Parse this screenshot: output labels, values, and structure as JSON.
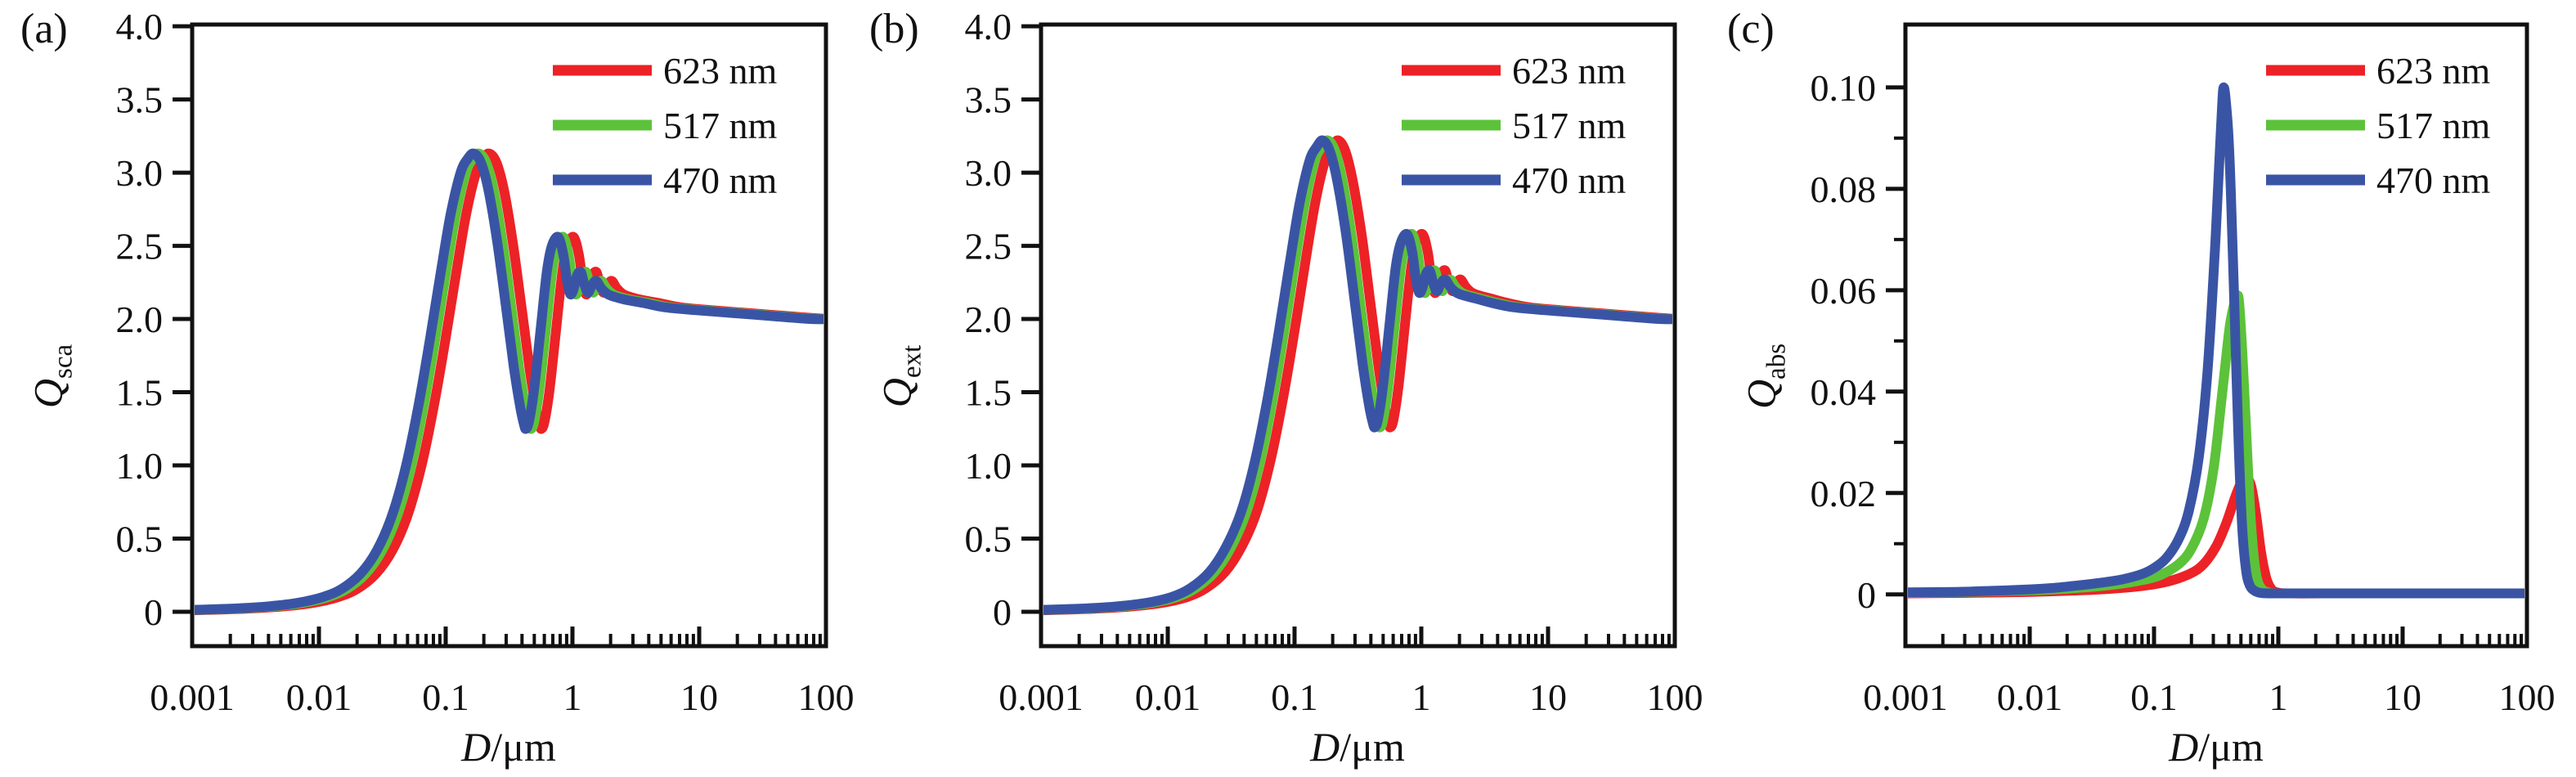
{
  "chart_data": [
    {
      "type": "line",
      "panel_label": "(a)",
      "ylabel_main": "Q",
      "ylabel_sub": "sca",
      "xlabel_main": "D",
      "xlabel_unit": "/μm",
      "xscale": "log",
      "grid": false,
      "legend_position": "top-right",
      "xlim": [
        0.001,
        100
      ],
      "ylim": [
        -0.235,
        4.012
      ],
      "xticks": [
        {
          "log": -3,
          "label": "0.001"
        },
        {
          "log": -2,
          "label": "0.01"
        },
        {
          "log": -1,
          "label": "0.1"
        },
        {
          "log": 0,
          "label": "1"
        },
        {
          "log": 1,
          "label": "10"
        },
        {
          "log": 2,
          "label": "100"
        }
      ],
      "yticks": [
        {
          "v": 0,
          "label": "0"
        },
        {
          "v": 0.5,
          "label": "0.5"
        },
        {
          "v": 1.0,
          "label": "1.0"
        },
        {
          "v": 1.5,
          "label": "1.5"
        },
        {
          "v": 2.0,
          "label": "2.0"
        },
        {
          "v": 2.5,
          "label": "2.5"
        },
        {
          "v": 3.0,
          "label": "3.0"
        },
        {
          "v": 3.5,
          "label": "3.5"
        },
        {
          "v": 4.0,
          "label": "4.0"
        }
      ],
      "yminor": [],
      "legend": {
        "entries": [
          {
            "label": "623 nm",
            "color": "#EC2227"
          },
          {
            "label": "517 nm",
            "color": "#5CC23A"
          },
          {
            "label": "470 nm",
            "color": "#3A54A5"
          }
        ]
      },
      "series": [
        {
          "name": "623 nm",
          "color": "#EC2227",
          "points": [
            [
              -3.0,
              0.01
            ],
            [
              -2.6,
              0.02
            ],
            [
              -2.3,
              0.035
            ],
            [
              -2.05,
              0.06
            ],
            [
              -1.85,
              0.1
            ],
            [
              -1.7,
              0.155
            ],
            [
              -1.55,
              0.26
            ],
            [
              -1.42,
              0.42
            ],
            [
              -1.3,
              0.66
            ],
            [
              -1.19,
              1.0
            ],
            [
              -1.09,
              1.42
            ],
            [
              -1.0,
              1.87
            ],
            [
              -0.92,
              2.3
            ],
            [
              -0.84,
              2.71
            ],
            [
              -0.76,
              3.0
            ],
            [
              -0.7,
              3.1
            ],
            [
              -0.655,
              3.13
            ],
            [
              -0.6,
              3.07
            ],
            [
              -0.54,
              2.88
            ],
            [
              -0.47,
              2.52
            ],
            [
              -0.4,
              2.07
            ],
            [
              -0.34,
              1.67
            ],
            [
              -0.29,
              1.4
            ],
            [
              -0.26,
              1.28
            ],
            [
              -0.245,
              1.25
            ],
            [
              -0.22,
              1.3
            ],
            [
              -0.18,
              1.52
            ],
            [
              -0.13,
              1.92
            ],
            [
              -0.08,
              2.32
            ],
            [
              -0.04,
              2.5
            ],
            [
              0.01,
              2.56
            ],
            [
              0.05,
              2.44
            ],
            [
              0.08,
              2.26
            ],
            [
              0.105,
              2.17
            ],
            [
              0.13,
              2.2
            ],
            [
              0.16,
              2.3
            ],
            [
              0.19,
              2.32
            ],
            [
              0.215,
              2.24
            ],
            [
              0.245,
              2.18
            ],
            [
              0.275,
              2.23
            ],
            [
              0.31,
              2.26
            ],
            [
              0.35,
              2.21
            ],
            [
              0.4,
              2.17
            ],
            [
              0.46,
              2.15
            ],
            [
              0.55,
              2.13
            ],
            [
              0.68,
              2.11
            ],
            [
              0.85,
              2.08
            ],
            [
              1.1,
              2.06
            ],
            [
              1.4,
              2.04
            ],
            [
              1.7,
              2.02
            ],
            [
              2.0,
              2.0
            ]
          ]
        },
        {
          "name": "517 nm",
          "color": "#5CC23A",
          "shift": -0.081
        },
        {
          "name": "470 nm",
          "color": "#3A54A5",
          "shift": -0.1224
        }
      ]
    },
    {
      "type": "line",
      "panel_label": "(b)",
      "ylabel_main": "Q",
      "ylabel_sub": "ext",
      "xlabel_main": "D",
      "xlabel_unit": "/μm",
      "xscale": "log",
      "grid": false,
      "legend_position": "top-right",
      "xlim": [
        0.001,
        100
      ],
      "ylim": [
        -0.235,
        4.012
      ],
      "xticks": [
        {
          "log": -3,
          "label": "0.001"
        },
        {
          "log": -2,
          "label": "0.01"
        },
        {
          "log": -1,
          "label": "0.1"
        },
        {
          "log": 0,
          "label": "1"
        },
        {
          "log": 1,
          "label": "10"
        },
        {
          "log": 2,
          "label": "100"
        }
      ],
      "yticks": [
        {
          "v": 0,
          "label": "0"
        },
        {
          "v": 0.5,
          "label": "0.5"
        },
        {
          "v": 1.0,
          "label": "1.0"
        },
        {
          "v": 1.5,
          "label": "1.5"
        },
        {
          "v": 2.0,
          "label": "2.0"
        },
        {
          "v": 2.5,
          "label": "2.5"
        },
        {
          "v": 3.0,
          "label": "3.0"
        },
        {
          "v": 3.5,
          "label": "3.5"
        },
        {
          "v": 4.0,
          "label": "4.0"
        }
      ],
      "yminor": [],
      "legend": {
        "entries": [
          {
            "label": "623 nm",
            "color": "#EC2227"
          },
          {
            "label": "517 nm",
            "color": "#5CC23A"
          },
          {
            "label": "470 nm",
            "color": "#3A54A5"
          }
        ]
      },
      "series": [
        {
          "name": "623 nm",
          "color": "#EC2227",
          "points": [
            [
              -3.0,
              0.01
            ],
            [
              -2.6,
              0.02
            ],
            [
              -2.3,
              0.035
            ],
            [
              -2.05,
              0.06
            ],
            [
              -1.85,
              0.1
            ],
            [
              -1.7,
              0.16
            ],
            [
              -1.55,
              0.27
            ],
            [
              -1.42,
              0.44
            ],
            [
              -1.3,
              0.68
            ],
            [
              -1.19,
              1.03
            ],
            [
              -1.09,
              1.46
            ],
            [
              -1.0,
              1.92
            ],
            [
              -0.92,
              2.36
            ],
            [
              -0.84,
              2.78
            ],
            [
              -0.76,
              3.08
            ],
            [
              -0.7,
              3.18
            ],
            [
              -0.655,
              3.22
            ],
            [
              -0.6,
              3.15
            ],
            [
              -0.54,
              2.94
            ],
            [
              -0.47,
              2.57
            ],
            [
              -0.4,
              2.1
            ],
            [
              -0.34,
              1.69
            ],
            [
              -0.29,
              1.41
            ],
            [
              -0.26,
              1.29
            ],
            [
              -0.245,
              1.26
            ],
            [
              -0.22,
              1.31
            ],
            [
              -0.18,
              1.54
            ],
            [
              -0.13,
              1.95
            ],
            [
              -0.08,
              2.35
            ],
            [
              -0.04,
              2.52
            ],
            [
              0.01,
              2.58
            ],
            [
              0.05,
              2.46
            ],
            [
              0.08,
              2.27
            ],
            [
              0.105,
              2.18
            ],
            [
              0.13,
              2.21
            ],
            [
              0.16,
              2.31
            ],
            [
              0.19,
              2.33
            ],
            [
              0.215,
              2.25
            ],
            [
              0.245,
              2.19
            ],
            [
              0.275,
              2.24
            ],
            [
              0.31,
              2.27
            ],
            [
              0.35,
              2.22
            ],
            [
              0.4,
              2.18
            ],
            [
              0.46,
              2.16
            ],
            [
              0.55,
              2.14
            ],
            [
              0.68,
              2.11
            ],
            [
              0.85,
              2.08
            ],
            [
              1.1,
              2.06
            ],
            [
              1.4,
              2.04
            ],
            [
              1.7,
              2.02
            ],
            [
              2.0,
              2.0
            ]
          ]
        },
        {
          "name": "517 nm",
          "color": "#5CC23A",
          "shift": -0.081
        },
        {
          "name": "470 nm",
          "color": "#3A54A5",
          "shift": -0.1224
        }
      ]
    },
    {
      "type": "line",
      "panel_label": "(c)",
      "ylabel_main": "Q",
      "ylabel_sub": "abs",
      "xlabel_main": "D",
      "xlabel_unit": "/μm",
      "xscale": "log",
      "grid": false,
      "legend_position": "top-right",
      "xlim": [
        0.001,
        100
      ],
      "ylim": [
        -0.0102,
        0.1124
      ],
      "xticks": [
        {
          "log": -3,
          "label": "0.001"
        },
        {
          "log": -2,
          "label": "0.01"
        },
        {
          "log": -1,
          "label": "0.1"
        },
        {
          "log": 0,
          "label": "1"
        },
        {
          "log": 1,
          "label": "10"
        },
        {
          "log": 2,
          "label": "100"
        }
      ],
      "yticks": [
        {
          "v": 0,
          "label": "0"
        },
        {
          "v": 0.02,
          "label": "0.02"
        },
        {
          "v": 0.04,
          "label": "0.04"
        },
        {
          "v": 0.06,
          "label": "0.06"
        },
        {
          "v": 0.08,
          "label": "0.08"
        },
        {
          "v": 0.1,
          "label": "0.10"
        }
      ],
      "yminor": [
        0.01,
        0.03,
        0.05,
        0.07,
        0.09
      ],
      "legend": {
        "entries": [
          {
            "label": "623 nm",
            "color": "#EC2227"
          },
          {
            "label": "517 nm",
            "color": "#5CC23A"
          },
          {
            "label": "470 nm",
            "color": "#3A54A5"
          }
        ]
      },
      "series": [
        {
          "name": "623 nm",
          "color": "#EC2227",
          "points": [
            [
              -3.0,
              0.0002
            ],
            [
              -2.5,
              0.0003
            ],
            [
              -2.0,
              0.0005
            ],
            [
              -1.5,
              0.0009
            ],
            [
              -1.2,
              0.0014
            ],
            [
              -1.0,
              0.002
            ],
            [
              -0.85,
              0.0028
            ],
            [
              -0.7,
              0.0042
            ],
            [
              -0.6,
              0.006
            ],
            [
              -0.5,
              0.0095
            ],
            [
              -0.42,
              0.014
            ],
            [
              -0.35,
              0.019
            ],
            [
              -0.3,
              0.022
            ],
            [
              -0.26,
              0.023
            ],
            [
              -0.22,
              0.0215
            ],
            [
              -0.18,
              0.016
            ],
            [
              -0.14,
              0.0085
            ],
            [
              -0.1,
              0.0035
            ],
            [
              -0.06,
              0.0012
            ],
            [
              -0.01,
              0.0004
            ],
            [
              0.1,
              0.0002
            ],
            [
              0.5,
              0.0002
            ],
            [
              1.0,
              0.0002
            ],
            [
              2.0,
              0.0002
            ]
          ]
        },
        {
          "name": "517 nm",
          "color": "#5CC23A",
          "points": [
            [
              -3.0,
              0.0003
            ],
            [
              -2.5,
              0.0005
            ],
            [
              -2.0,
              0.0008
            ],
            [
              -1.6,
              0.0013
            ],
            [
              -1.3,
              0.002
            ],
            [
              -1.1,
              0.0028
            ],
            [
              -0.95,
              0.0038
            ],
            [
              -0.8,
              0.006
            ],
            [
              -0.7,
              0.009
            ],
            [
              -0.6,
              0.015
            ],
            [
              -0.52,
              0.025
            ],
            [
              -0.45,
              0.04
            ],
            [
              -0.39,
              0.053
            ],
            [
              -0.345,
              0.0582
            ],
            [
              -0.33,
              0.059
            ],
            [
              -0.315,
              0.0575
            ],
            [
              -0.29,
              0.048
            ],
            [
              -0.26,
              0.033
            ],
            [
              -0.23,
              0.018
            ],
            [
              -0.2,
              0.008
            ],
            [
              -0.17,
              0.003
            ],
            [
              -0.13,
              0.001
            ],
            [
              -0.08,
              0.0004
            ],
            [
              0.0,
              0.0002
            ],
            [
              0.5,
              0.0002
            ],
            [
              1.0,
              0.0002
            ],
            [
              2.0,
              0.0002
            ]
          ]
        },
        {
          "name": "470 nm",
          "color": "#3A54A5",
          "points": [
            [
              -3.0,
              0.0004
            ],
            [
              -2.6,
              0.0005
            ],
            [
              -2.3,
              0.0007
            ],
            [
              -2.0,
              0.001
            ],
            [
              -1.8,
              0.0013
            ],
            [
              -1.6,
              0.0018
            ],
            [
              -1.4,
              0.0024
            ],
            [
              -1.25,
              0.003
            ],
            [
              -1.1,
              0.004
            ],
            [
              -1.0,
              0.0052
            ],
            [
              -0.9,
              0.0072
            ],
            [
              -0.8,
              0.011
            ],
            [
              -0.72,
              0.0165
            ],
            [
              -0.64,
              0.027
            ],
            [
              -0.57,
              0.044
            ],
            [
              -0.51,
              0.068
            ],
            [
              -0.47,
              0.088
            ],
            [
              -0.45,
              0.0975
            ],
            [
              -0.44,
              0.1
            ],
            [
              -0.425,
              0.098
            ],
            [
              -0.4,
              0.09
            ],
            [
              -0.38,
              0.078
            ],
            [
              -0.35,
              0.054
            ],
            [
              -0.32,
              0.03
            ],
            [
              -0.29,
              0.013
            ],
            [
              -0.26,
              0.0048
            ],
            [
              -0.23,
              0.0018
            ],
            [
              -0.19,
              0.0007
            ],
            [
              -0.14,
              0.0003
            ],
            [
              -0.05,
              0.0002
            ],
            [
              0.3,
              0.0002
            ],
            [
              1.0,
              0.0002
            ],
            [
              2.0,
              0.0002
            ]
          ]
        }
      ]
    }
  ]
}
